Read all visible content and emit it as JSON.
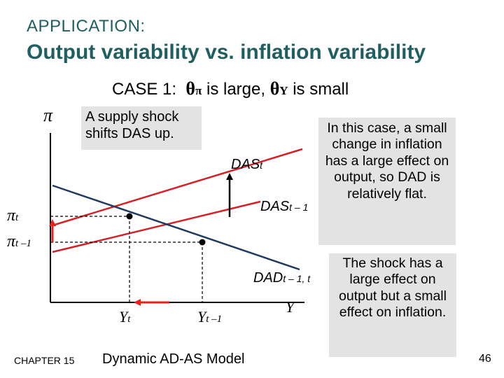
{
  "header": {
    "app_title": "APPLICATION:",
    "title": "Output variability vs. inflation variability"
  },
  "case": {
    "prefix": "CASE ",
    "number": "1",
    "colon": ":",
    "theta": "θ",
    "pi_sub": "π",
    "mid": " is large, ",
    "y_sub": "Y",
    "suffix": " is small"
  },
  "notes": {
    "shock": "A supply shock shifts DAS up.",
    "case_text": "In this case, a small change in inflation has a large effect on output, so DAD is relatively flat.",
    "effect_text": "The shock has a large effect on output but a small effect on inflation."
  },
  "diagram": {
    "y_axis_label": "π",
    "x_axis_label": "Y",
    "pi_t": {
      "base": "π",
      "sub": "t"
    },
    "pi_t1": {
      "base": "π",
      "sub": "t –1"
    },
    "y_t": {
      "base": "Y",
      "sub": "t"
    },
    "y_t1": {
      "base": "Y",
      "sub": "t –1"
    },
    "das_t": {
      "base": "DAS",
      "sub": "t"
    },
    "das_t1": {
      "base": "DAS",
      "sub": "t – 1"
    },
    "dad": {
      "base": "DAD",
      "sub": "t – 1, t"
    },
    "colors": {
      "das": "#d42027",
      "dad": "#1f3a5f",
      "arrow_red": "#e8211c",
      "axis": "#000000"
    }
  },
  "footer": {
    "chapter": "CHAPTER 15",
    "model": "Dynamic AD-AS Model",
    "page": "46"
  }
}
